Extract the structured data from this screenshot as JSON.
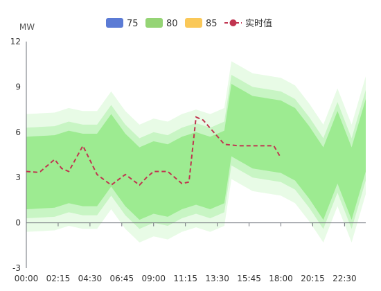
{
  "chart_data": {
    "type": "area",
    "y_unit": "MW",
    "ylim": [
      -3,
      12
    ],
    "y_ticks": [
      -3,
      0,
      3,
      6,
      9,
      12
    ],
    "x_tick_labels": [
      "00:00",
      "02:15",
      "04:30",
      "06:45",
      "09:00",
      "11:15",
      "13:30",
      "15:45",
      "18:00",
      "20:15",
      "22:30"
    ],
    "x_count": 97,
    "legend": [
      {
        "name": "75",
        "color": "#5b7bd5",
        "kind": "band"
      },
      {
        "name": "80",
        "color": "#95d475",
        "kind": "band"
      },
      {
        "name": "85",
        "color": "#fac858",
        "kind": "band"
      },
      {
        "name": "实时值",
        "color": "#c0344f",
        "kind": "line"
      }
    ],
    "band_colors": {
      "outer": "#e8fbe6",
      "middle": "#c8f5c4",
      "inner": "#9deb91"
    },
    "center": [
      [
        0,
        3.3
      ],
      [
        8,
        3.4
      ],
      [
        12,
        3.7
      ],
      [
        16,
        3.5
      ],
      [
        20,
        3.5
      ],
      [
        24,
        4.8
      ],
      [
        28,
        3.5
      ],
      [
        32,
        2.6
      ],
      [
        36,
        3.0
      ],
      [
        40,
        2.8
      ],
      [
        44,
        3.3
      ],
      [
        48,
        3.6
      ],
      [
        52,
        3.3
      ],
      [
        56,
        3.7
      ],
      [
        58,
        6.8
      ],
      [
        64,
        6.0
      ],
      [
        72,
        5.7
      ],
      [
        76,
        5.2
      ],
      [
        80,
        4.0
      ],
      [
        84,
        2.6
      ],
      [
        88,
        5.0
      ],
      [
        92,
        2.6
      ],
      [
        96,
        5.8
      ]
    ],
    "band_half_widths": {
      "inner": 2.4,
      "middle": 3.0,
      "outer": 3.9
    },
    "realtime": {
      "name": "实时值",
      "points": [
        [
          0,
          3.4
        ],
        [
          3,
          3.35
        ],
        [
          4,
          3.4
        ],
        [
          8,
          4.2
        ],
        [
          10,
          3.6
        ],
        [
          12,
          3.4
        ],
        [
          16,
          5.1
        ],
        [
          20,
          3.2
        ],
        [
          24,
          2.5
        ],
        [
          28,
          3.2
        ],
        [
          32,
          2.5
        ],
        [
          34,
          3.0
        ],
        [
          36,
          3.4
        ],
        [
          38,
          3.4
        ],
        [
          40,
          3.4
        ],
        [
          42,
          3.0
        ],
        [
          44,
          2.6
        ],
        [
          46,
          2.7
        ],
        [
          48,
          7.0
        ],
        [
          50,
          6.8
        ],
        [
          56,
          5.2
        ],
        [
          60,
          5.1
        ],
        [
          64,
          5.1
        ],
        [
          70,
          5.1
        ],
        [
          72,
          4.3
        ]
      ]
    }
  }
}
